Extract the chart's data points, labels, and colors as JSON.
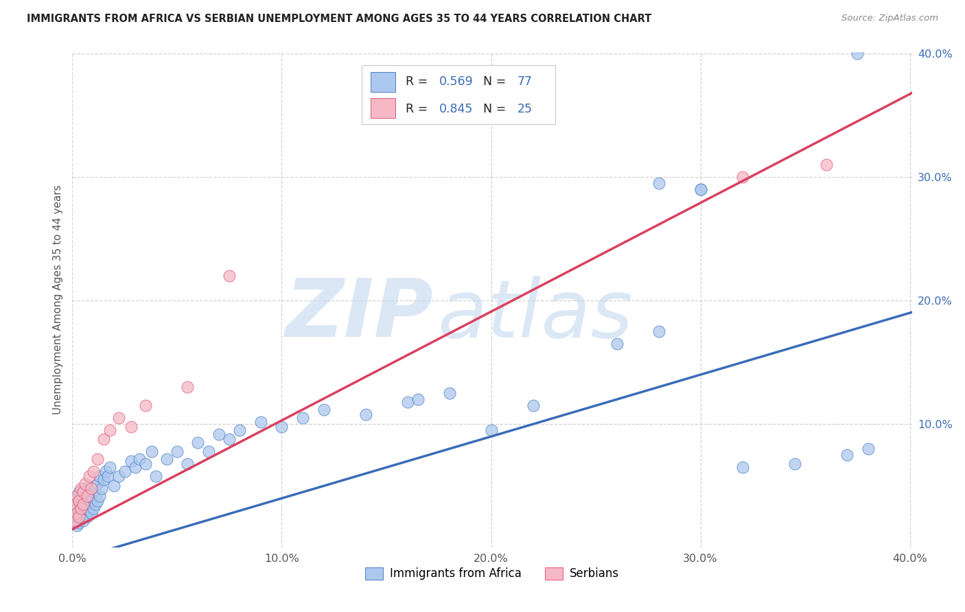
{
  "title": "IMMIGRANTS FROM AFRICA VS SERBIAN UNEMPLOYMENT AMONG AGES 35 TO 44 YEARS CORRELATION CHART",
  "source": "Source: ZipAtlas.com",
  "ylabel": "Unemployment Among Ages 35 to 44 years",
  "blue_R": "0.569",
  "blue_N": "77",
  "pink_R": "0.845",
  "pink_N": "25",
  "blue_fill": "#adc8ee",
  "pink_fill": "#f5b8c4",
  "blue_edge": "#4a7fc1",
  "pink_edge": "#e05878",
  "blue_line": "#3a6cb8",
  "pink_line": "#d94060",
  "text_dark": "#222222",
  "text_blue": "#3a6cb8",
  "text_gray": "#888888",
  "grid_color": "#cccccc",
  "legend_label_blue": "Immigrants from Africa",
  "legend_label_pink": "Serbians",
  "blue_x": [
    0.001,
    0.001,
    0.001,
    0.002,
    0.002,
    0.002,
    0.002,
    0.003,
    0.003,
    0.003,
    0.003,
    0.004,
    0.004,
    0.004,
    0.005,
    0.005,
    0.005,
    0.006,
    0.006,
    0.006,
    0.007,
    0.007,
    0.007,
    0.008,
    0.008,
    0.009,
    0.009,
    0.01,
    0.01,
    0.011,
    0.011,
    0.012,
    0.012,
    0.013,
    0.013,
    0.014,
    0.015,
    0.016,
    0.017,
    0.018,
    0.02,
    0.022,
    0.025,
    0.028,
    0.03,
    0.032,
    0.035,
    0.038,
    0.04,
    0.045,
    0.05,
    0.055,
    0.06,
    0.065,
    0.07,
    0.075,
    0.08,
    0.09,
    0.1,
    0.11,
    0.12,
    0.14,
    0.16,
    0.18,
    0.2,
    0.22,
    0.26,
    0.28,
    0.3,
    0.32,
    0.345,
    0.37,
    0.38,
    0.165,
    0.28,
    0.3,
    0.375
  ],
  "blue_y": [
    0.022,
    0.028,
    0.035,
    0.018,
    0.025,
    0.032,
    0.04,
    0.02,
    0.03,
    0.038,
    0.045,
    0.025,
    0.035,
    0.042,
    0.022,
    0.032,
    0.04,
    0.028,
    0.038,
    0.048,
    0.025,
    0.035,
    0.042,
    0.03,
    0.042,
    0.028,
    0.038,
    0.032,
    0.045,
    0.035,
    0.05,
    0.038,
    0.052,
    0.042,
    0.058,
    0.048,
    0.055,
    0.062,
    0.058,
    0.065,
    0.05,
    0.058,
    0.062,
    0.07,
    0.065,
    0.072,
    0.068,
    0.078,
    0.058,
    0.072,
    0.078,
    0.068,
    0.085,
    0.078,
    0.092,
    0.088,
    0.095,
    0.102,
    0.098,
    0.105,
    0.112,
    0.108,
    0.118,
    0.125,
    0.095,
    0.115,
    0.165,
    0.175,
    0.29,
    0.065,
    0.068,
    0.075,
    0.08,
    0.12,
    0.295,
    0.29,
    0.4
  ],
  "pink_x": [
    0.001,
    0.001,
    0.002,
    0.002,
    0.003,
    0.003,
    0.004,
    0.004,
    0.005,
    0.005,
    0.006,
    0.007,
    0.008,
    0.009,
    0.01,
    0.012,
    0.015,
    0.018,
    0.022,
    0.028,
    0.035,
    0.055,
    0.075,
    0.32,
    0.36
  ],
  "pink_y": [
    0.022,
    0.035,
    0.028,
    0.042,
    0.025,
    0.038,
    0.032,
    0.048,
    0.035,
    0.045,
    0.052,
    0.042,
    0.058,
    0.048,
    0.062,
    0.072,
    0.088,
    0.095,
    0.105,
    0.098,
    0.115,
    0.13,
    0.22,
    0.3,
    0.31
  ],
  "blue_trend": [
    -0.005,
    0.5
  ],
  "pink_trend": [
    0.002,
    0.93
  ]
}
